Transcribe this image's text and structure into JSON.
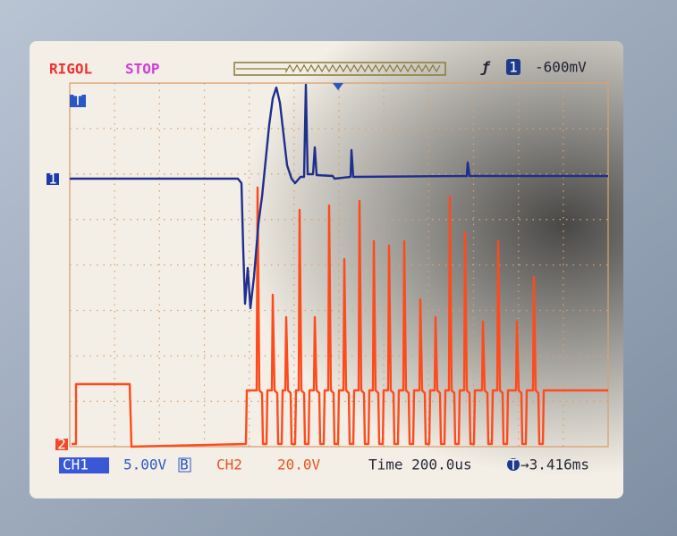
{
  "header": {
    "brand": "RIGOL",
    "status": "STOP",
    "trigger_edge": "ƒ",
    "trigger_source": "1",
    "trigger_level": "-600mV"
  },
  "markers": {
    "trigger": "T",
    "ch1": "1",
    "ch2": "2"
  },
  "footer": {
    "ch1_label": "CH1",
    "ch1_scale": "5.00V",
    "ch1_limit": "B",
    "ch2_label": "CH2",
    "ch2_scale": "20.0V",
    "timebase": "Time 200.0us",
    "offset_icon": "T",
    "trigger_offset": "→3.416ms"
  }
}
